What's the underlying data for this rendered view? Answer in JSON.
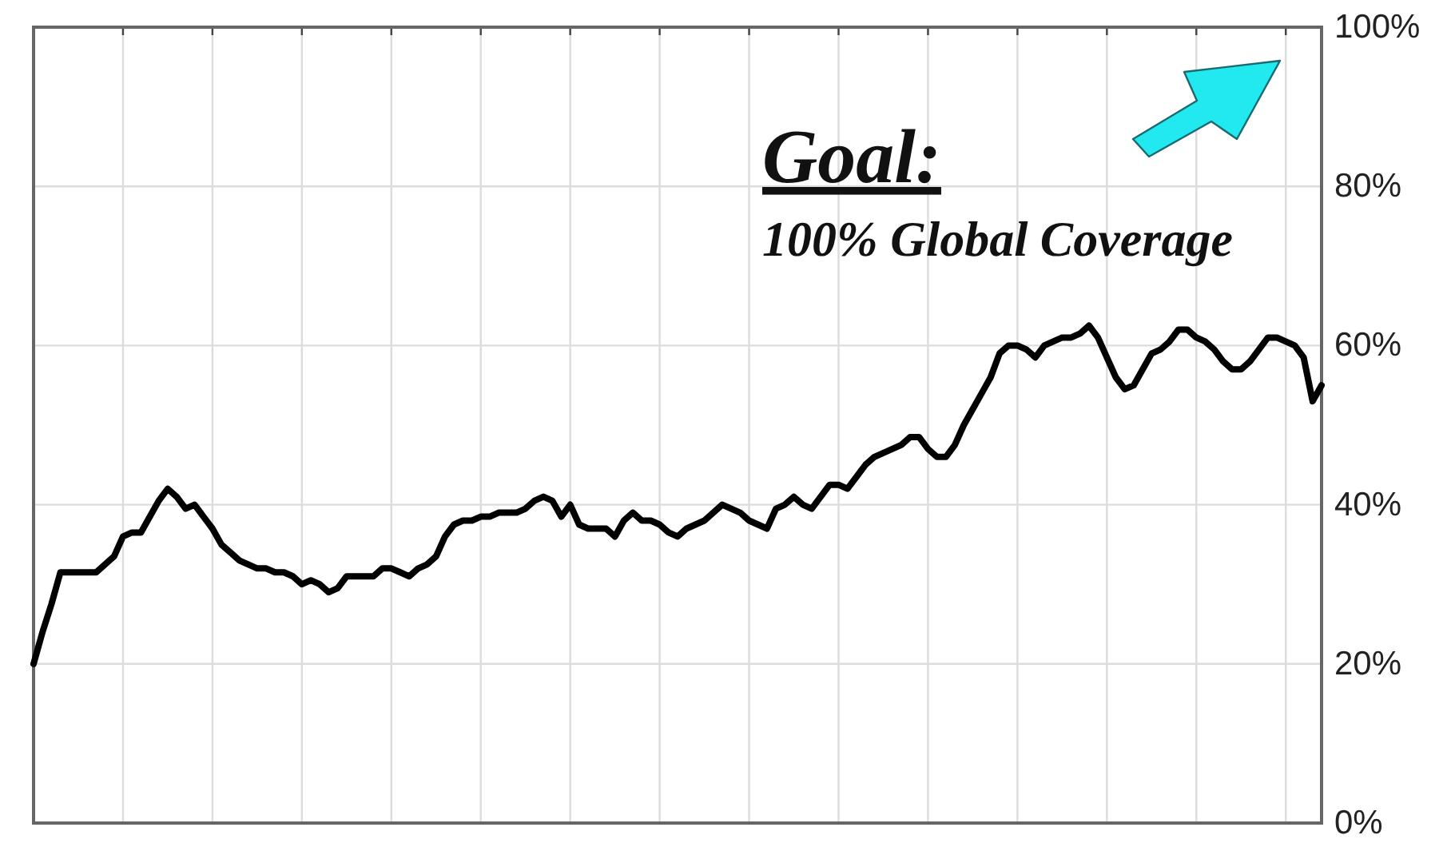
{
  "chart_data": {
    "type": "line",
    "categories": [
      null,
      null,
      null,
      null,
      null,
      null,
      null,
      null,
      null,
      null,
      null,
      null,
      null,
      null,
      null,
      null,
      null,
      null,
      null,
      null,
      null,
      null,
      null,
      null,
      null,
      null,
      null,
      null,
      null,
      null,
      null,
      null,
      null,
      null,
      null,
      null,
      null,
      null,
      null,
      null,
      null,
      null,
      null,
      null,
      null,
      null,
      null,
      null,
      null,
      null,
      null,
      null,
      null,
      null,
      null,
      null,
      null,
      null,
      null,
      null,
      null,
      null,
      null,
      null,
      null,
      null,
      null,
      null,
      null,
      null,
      null,
      null,
      null,
      null,
      null,
      null,
      null,
      null,
      null,
      null,
      null,
      null,
      null,
      null,
      null,
      null,
      null,
      null,
      null,
      null,
      null,
      null,
      null,
      null,
      null,
      null,
      null,
      null,
      null,
      null,
      null,
      null,
      null,
      null,
      null,
      null,
      null,
      null,
      null,
      null,
      null,
      null,
      null,
      null,
      null,
      null,
      null,
      null,
      null,
      null,
      null,
      null,
      null,
      null,
      null,
      null,
      null,
      null,
      null,
      null,
      null,
      null,
      null,
      null,
      null,
      null,
      null,
      null,
      null,
      null,
      null,
      null,
      null,
      null,
      null
    ],
    "series": [
      {
        "color": "#000000",
        "values": [
          20,
          24,
          27.5,
          31.5,
          31.5,
          31.5,
          31.5,
          31.5,
          32.5,
          33.5,
          36,
          36.5,
          36.5,
          38.5,
          40.5,
          42,
          41,
          39.5,
          40,
          38.5,
          37,
          35,
          34,
          33,
          32.5,
          32,
          32,
          31.5,
          31.5,
          31,
          30,
          30.5,
          30,
          29,
          29.5,
          31,
          31,
          31,
          31,
          32,
          32,
          31.5,
          31,
          32,
          32.5,
          33.5,
          36,
          37.5,
          38,
          38,
          38.5,
          38.5,
          39,
          39,
          39,
          39.5,
          40.5,
          41,
          40.5,
          38.5,
          40,
          37.5,
          37,
          37,
          37,
          36,
          38,
          39,
          38,
          38,
          37.5,
          36.5,
          36,
          37,
          37.5,
          38,
          39,
          40,
          39.5,
          39,
          38,
          37.5,
          37,
          39.5,
          40,
          41,
          40,
          39.5,
          41,
          42.5,
          42.5,
          42,
          43.5,
          45,
          46,
          46.5,
          47,
          47.5,
          48.5,
          48.5,
          47,
          46,
          46,
          47.5,
          50,
          52,
          54,
          56,
          59,
          60,
          60,
          59.5,
          58.5,
          60,
          60.5,
          61,
          61,
          61.5,
          62.5,
          61,
          58.5,
          56,
          54.5,
          55,
          57,
          59,
          59.5,
          60.5,
          62,
          62,
          61,
          60.5,
          59.5,
          58,
          57,
          57,
          58,
          59.5,
          61,
          61,
          60.5,
          60,
          58.5,
          53,
          55
        ]
      }
    ],
    "ylim": [
      0,
      100
    ],
    "yticks": [
      {
        "value": 0,
        "label": "0%"
      },
      {
        "value": 20,
        "label": "20%"
      },
      {
        "value": 40,
        "label": "40%"
      },
      {
        "value": 60,
        "label": "60%"
      },
      {
        "value": 80,
        "label": "80%"
      },
      {
        "value": 100,
        "label": "100%"
      }
    ],
    "grid": true,
    "annotations": [
      "Goal:",
      "100% Global Coverage"
    ]
  }
}
